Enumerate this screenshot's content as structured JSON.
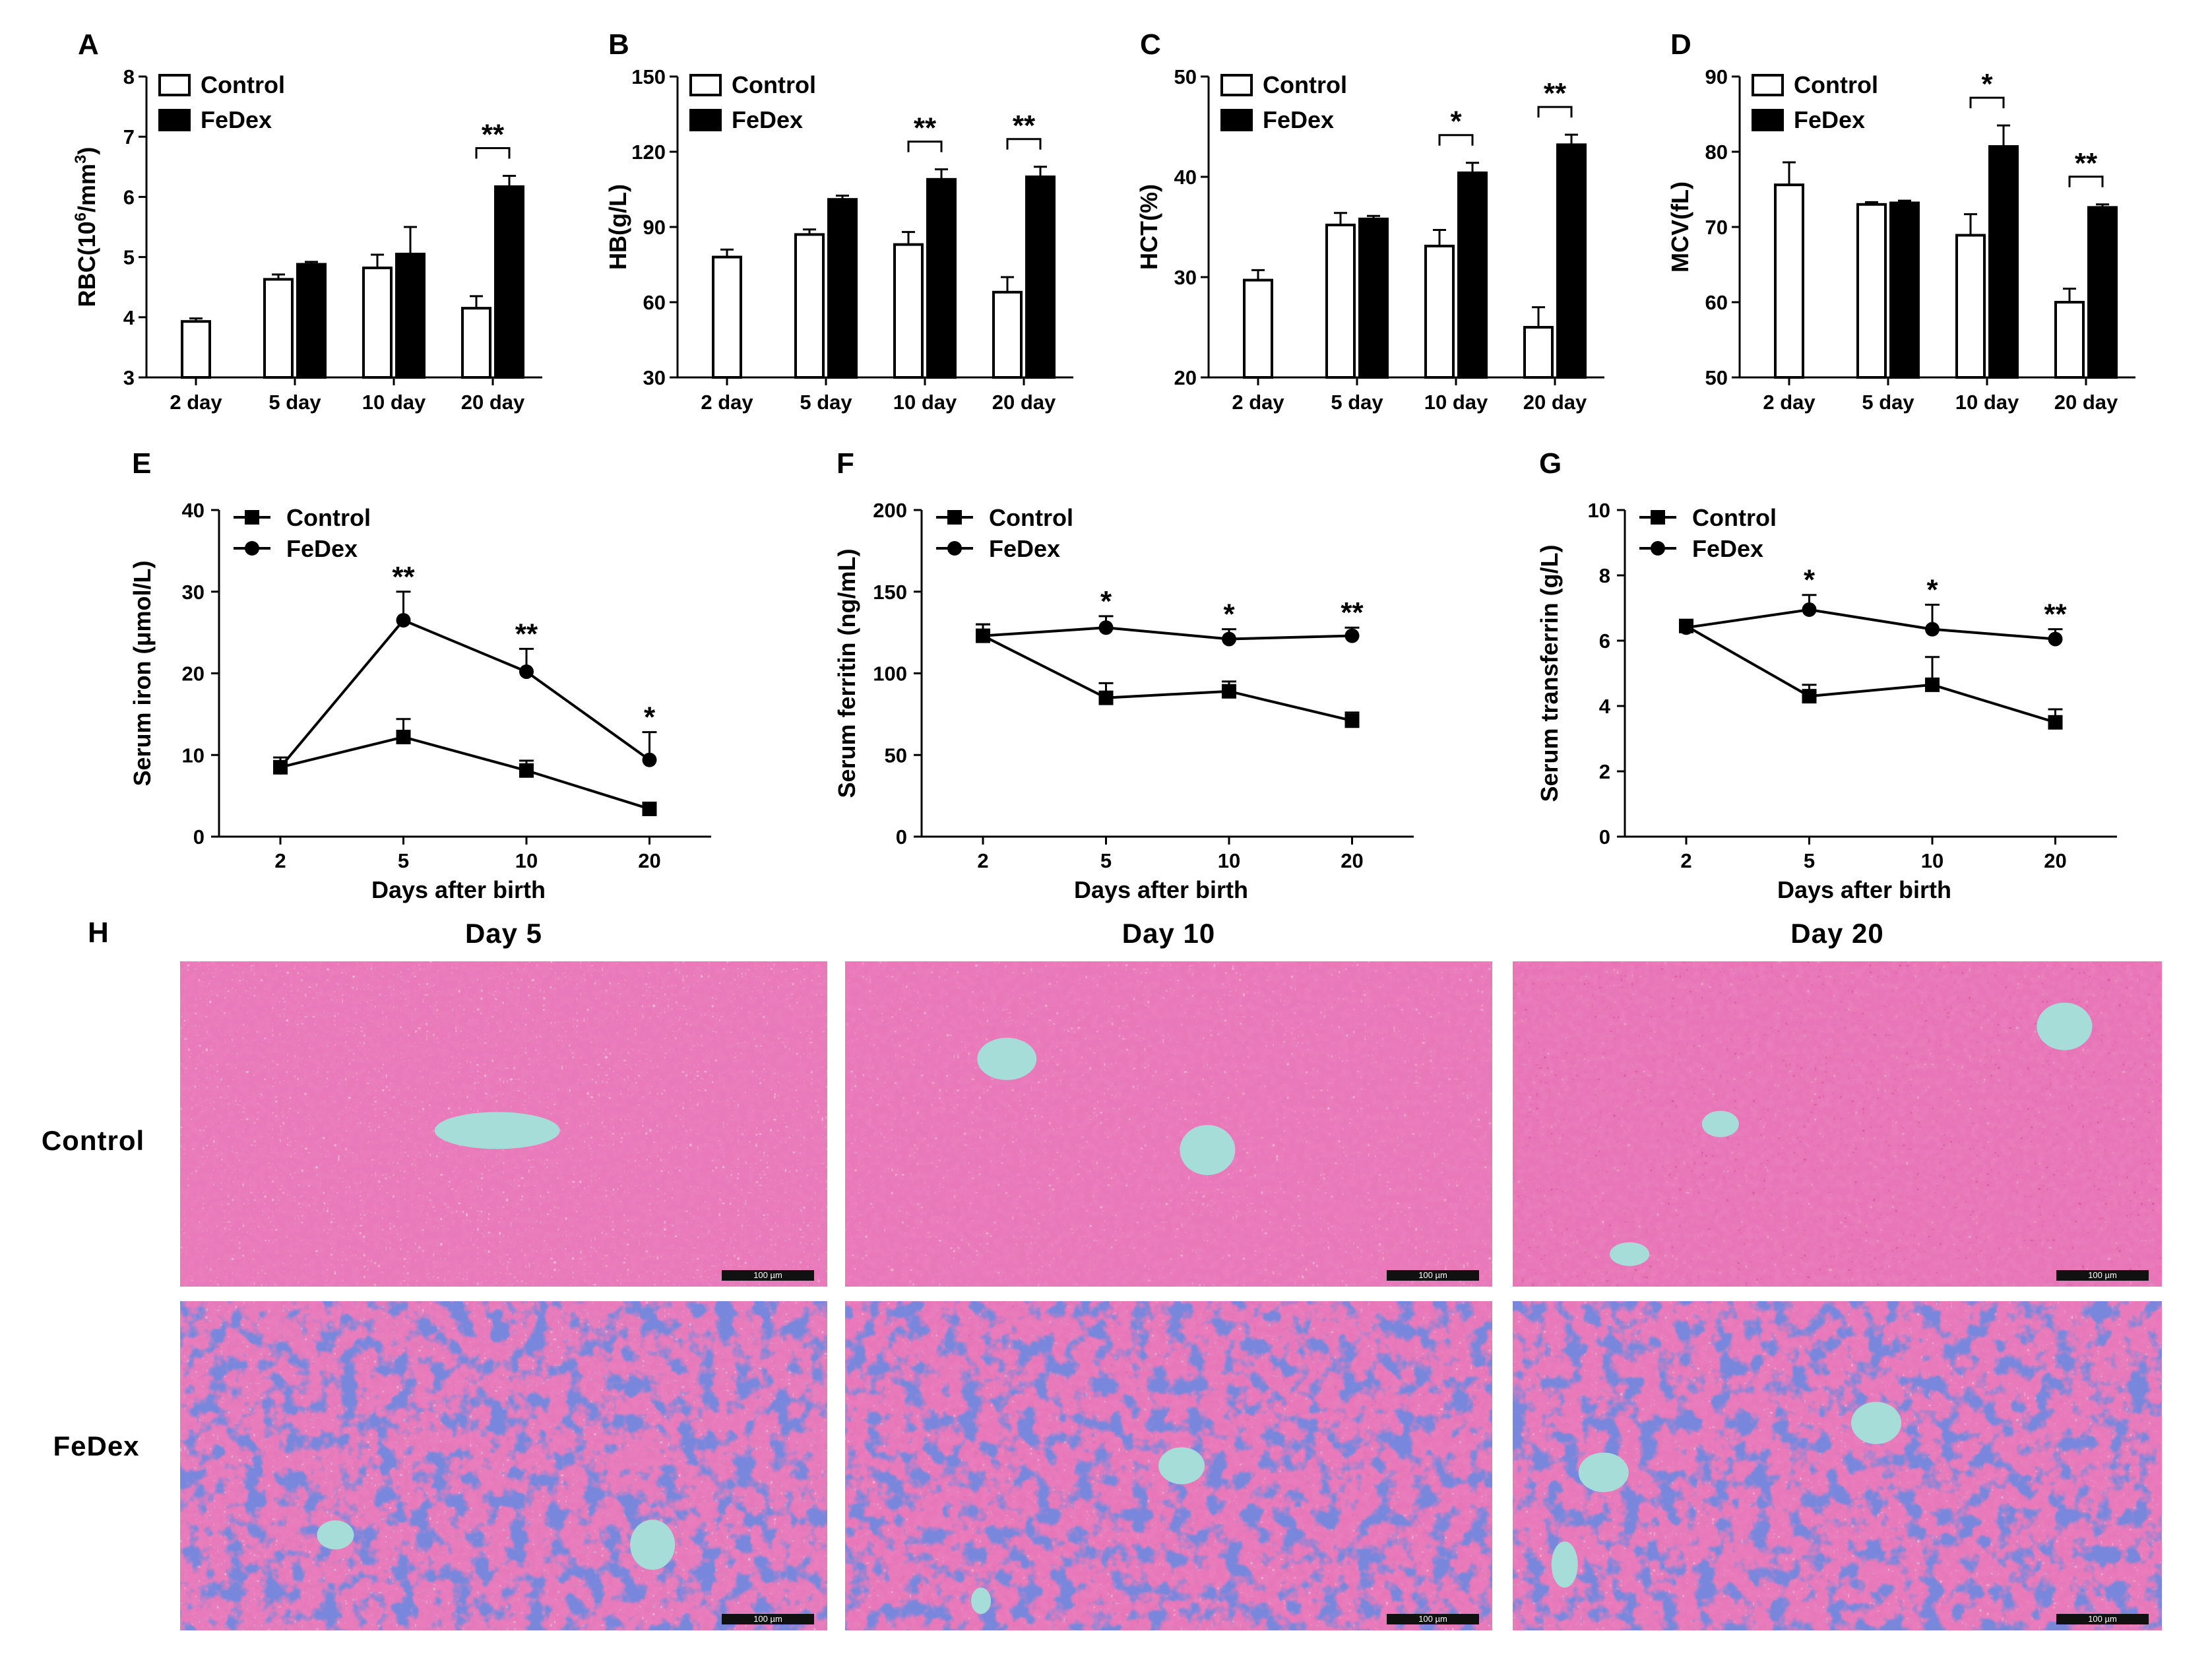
{
  "figure": {
    "histology": {
      "label": "H",
      "columns": [
        "Day 5",
        "Day 10",
        "Day 20"
      ],
      "rows": [
        "Control",
        "FeDex"
      ],
      "scale_bar": "100 µm",
      "colors": {
        "control": [
          "#e48bbd",
          "#e47ab5",
          "#d95e9e"
        ],
        "fedex": [
          "#c98bc2",
          "#d474b1",
          "#d47fb8"
        ],
        "nucleus": "#d0317c",
        "iron_stain": "#2740b8",
        "vessel": "#a7ddd9"
      }
    }
  },
  "chart_data": [
    {
      "id": "A",
      "type": "bar",
      "ylabel": "RBC(10^6/mm^3)",
      "ylabel_base": "RBC(10",
      "ylabel_exp": "6",
      "ylabel_mid": "/mm",
      "ylabel_exp2": "3",
      "ylabel_end": ")",
      "ylim": [
        3,
        8
      ],
      "yticks": [
        "3",
        "4",
        "5",
        "6",
        "7",
        "8"
      ],
      "categories": [
        "2 day",
        "5 day",
        "10 day",
        "20 day"
      ],
      "legend": [
        "Control",
        "FeDex"
      ],
      "series": [
        {
          "name": "Control",
          "values": [
            3.93,
            4.63,
            4.82,
            4.15
          ],
          "errors": [
            0.05,
            0.08,
            0.22,
            0.2
          ]
        },
        {
          "name": "FeDex",
          "values": [
            null,
            4.88,
            5.05,
            6.17
          ],
          "errors": [
            null,
            0.04,
            0.45,
            0.18
          ]
        }
      ],
      "significance": [
        {
          "category": 3,
          "label": "**"
        }
      ]
    },
    {
      "id": "B",
      "type": "bar",
      "ylabel": "HB(g/L)",
      "ylim": [
        30,
        150
      ],
      "yticks": [
        "30",
        "60",
        "90",
        "120",
        "150"
      ],
      "categories": [
        "2 day",
        "5 day",
        "10 day",
        "20 day"
      ],
      "legend": [
        "Control",
        "FeDex"
      ],
      "series": [
        {
          "name": "Control",
          "values": [
            78,
            87,
            83,
            64
          ],
          "errors": [
            3,
            2,
            5,
            6
          ]
        },
        {
          "name": "FeDex",
          "values": [
            null,
            101,
            109,
            110
          ],
          "errors": [
            null,
            1.5,
            4,
            4
          ]
        }
      ],
      "significance": [
        {
          "category": 2,
          "label": "**"
        },
        {
          "category": 3,
          "label": "**"
        }
      ]
    },
    {
      "id": "C",
      "type": "bar",
      "ylabel": "HCT(%)",
      "ylim": [
        20,
        50
      ],
      "yticks": [
        "20",
        "30",
        "40",
        "50"
      ],
      "categories": [
        "2 day",
        "5 day",
        "10 day",
        "20 day"
      ],
      "legend": [
        "Control",
        "FeDex"
      ],
      "series": [
        {
          "name": "Control",
          "values": [
            29.7,
            35.2,
            33.1,
            25.0
          ],
          "errors": [
            1.0,
            1.2,
            1.6,
            2.0
          ]
        },
        {
          "name": "FeDex",
          "values": [
            null,
            35.8,
            40.4,
            43.2
          ],
          "errors": [
            null,
            0.3,
            1.0,
            1.0
          ]
        }
      ],
      "significance": [
        {
          "category": 2,
          "label": "*"
        },
        {
          "category": 3,
          "label": "**"
        }
      ]
    },
    {
      "id": "D",
      "type": "bar",
      "ylabel": "MCV(fL)",
      "ylim": [
        50,
        90
      ],
      "yticks": [
        "50",
        "60",
        "70",
        "80",
        "90"
      ],
      "categories": [
        "2 day",
        "5 day",
        "10 day",
        "20 day"
      ],
      "legend": [
        "Control",
        "FeDex"
      ],
      "series": [
        {
          "name": "Control",
          "values": [
            75.6,
            73.0,
            68.9,
            60.0
          ],
          "errors": [
            3.0,
            0.3,
            2.8,
            1.8
          ]
        },
        {
          "name": "FeDex",
          "values": [
            null,
            73.2,
            80.7,
            72.6
          ],
          "errors": [
            null,
            0.3,
            2.8,
            0.4
          ]
        }
      ],
      "significance": [
        {
          "category": 2,
          "label": "*"
        },
        {
          "category": 3,
          "label": "**"
        }
      ]
    },
    {
      "id": "E",
      "type": "line",
      "xlabel": "Days after birth",
      "ylabel": "Serum iron (μmol/L)",
      "x": [
        "2",
        "5",
        "10",
        "20"
      ],
      "ylim": [
        0,
        40
      ],
      "yticks": [
        "0",
        "10",
        "20",
        "30",
        "40"
      ],
      "legend": [
        "Control",
        "FeDex"
      ],
      "series": [
        {
          "name": "Control",
          "marker": "square",
          "values": [
            8.5,
            12.2,
            8.1,
            3.4
          ],
          "errors": [
            1.2,
            2.2,
            1.2,
            0.3
          ]
        },
        {
          "name": "FeDex",
          "marker": "circle",
          "values": [
            8.5,
            26.5,
            20.2,
            9.4
          ],
          "errors": [
            1.2,
            3.5,
            2.8,
            3.4
          ]
        }
      ],
      "significance": [
        {
          "x": 1,
          "label": "**"
        },
        {
          "x": 2,
          "label": "**"
        },
        {
          "x": 3,
          "label": "*"
        }
      ]
    },
    {
      "id": "F",
      "type": "line",
      "xlabel": "Days after birth",
      "ylabel": "Serum ferritin (ng/mL)",
      "x": [
        "2",
        "5",
        "10",
        "20"
      ],
      "ylim": [
        0,
        200
      ],
      "yticks": [
        "0",
        "50",
        "100",
        "150",
        "200"
      ],
      "legend": [
        "Control",
        "FeDex"
      ],
      "series": [
        {
          "name": "Control",
          "marker": "square",
          "values": [
            123,
            85,
            89,
            71
          ],
          "errors": [
            7,
            9,
            6,
            5
          ]
        },
        {
          "name": "FeDex",
          "marker": "circle",
          "values": [
            123,
            128,
            121,
            123
          ],
          "errors": [
            7,
            7,
            6,
            5
          ]
        }
      ],
      "significance": [
        {
          "x": 1,
          "label": "*"
        },
        {
          "x": 2,
          "label": "*"
        },
        {
          "x": 3,
          "label": "**"
        }
      ]
    },
    {
      "id": "G",
      "type": "line",
      "xlabel": "Days after birth",
      "ylabel": "Serum transferrin (g/L)",
      "x": [
        "2",
        "5",
        "10",
        "20"
      ],
      "ylim": [
        0,
        10
      ],
      "yticks": [
        "0",
        "2",
        "4",
        "6",
        "8",
        "10"
      ],
      "legend": [
        "Control",
        "FeDex"
      ],
      "series": [
        {
          "name": "Control",
          "marker": "square",
          "values": [
            6.45,
            4.3,
            4.65,
            3.5
          ],
          "errors": [
            0.1,
            0.35,
            0.85,
            0.4
          ]
        },
        {
          "name": "FeDex",
          "marker": "circle",
          "values": [
            6.4,
            6.95,
            6.35,
            6.05
          ],
          "errors": [
            0.1,
            0.45,
            0.75,
            0.3
          ]
        }
      ],
      "significance": [
        {
          "x": 1,
          "label": "*"
        },
        {
          "x": 2,
          "label": "*"
        },
        {
          "x": 3,
          "label": "**"
        }
      ]
    }
  ]
}
